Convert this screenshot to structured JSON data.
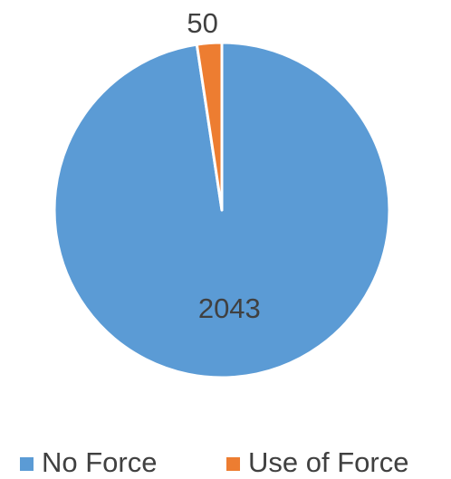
{
  "chart_data": {
    "type": "pie",
    "categories": [
      "No Force",
      "Use of Force"
    ],
    "values": [
      2043,
      50
    ],
    "colors": [
      "#5b9bd5",
      "#ed7d31"
    ],
    "legend": "bottom"
  }
}
